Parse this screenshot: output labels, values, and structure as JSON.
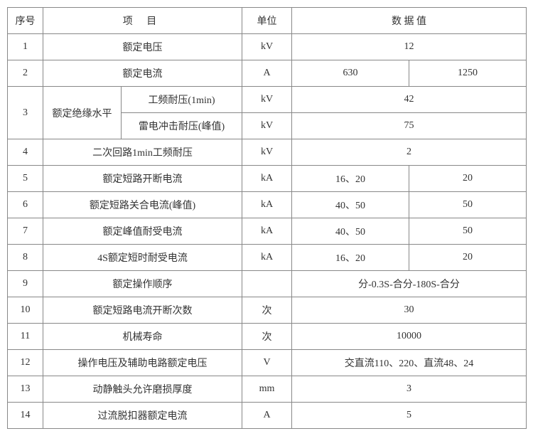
{
  "headers": {
    "seq": "序号",
    "item": "项   目",
    "unit": "单位",
    "value": "数 据 值"
  },
  "rows": {
    "r1": {
      "seq": "1",
      "item": "额定电压",
      "unit": "kV",
      "val": "12"
    },
    "r2": {
      "seq": "2",
      "item": "额定电流",
      "unit": "A",
      "val_a": "630",
      "val_b": "1250"
    },
    "r3": {
      "seq": "3",
      "item_group": "额定绝缘水平",
      "sub_a": "工频耐压(1min)",
      "unit_a": "kV",
      "val_a": "42",
      "sub_b": "雷电冲击耐压(峰值)",
      "unit_b": "kV",
      "val_b": "75"
    },
    "r4": {
      "seq": "4",
      "item": "二次回路1min工频耐压",
      "unit": "kV",
      "val": "2"
    },
    "r5": {
      "seq": "5",
      "item": "额定短路开断电流",
      "unit": "kA",
      "val_a": "16、20",
      "val_b": "20"
    },
    "r6": {
      "seq": "6",
      "item": "额定短路关合电流(峰值)",
      "unit": "kA",
      "val_a": "40、50",
      "val_b": "50"
    },
    "r7": {
      "seq": "7",
      "item": "额定峰值耐受电流",
      "unit": "kA",
      "val_a": "40、50",
      "val_b": "50"
    },
    "r8": {
      "seq": "8",
      "item": "4S额定短时耐受电流",
      "unit": "kA",
      "val_a": "16、20",
      "val_b": "20"
    },
    "r9": {
      "seq": "9",
      "item": "额定操作顺序",
      "unit": "",
      "val": "分-0.3S-合分-180S-合分"
    },
    "r10": {
      "seq": "10",
      "item": "额定短路电流开断次数",
      "unit": "次",
      "val": "30"
    },
    "r11": {
      "seq": "11",
      "item": "机械寿命",
      "unit": "次",
      "val": "10000"
    },
    "r12": {
      "seq": "12",
      "item": "操作电压及辅助电路额定电压",
      "unit": "V",
      "val": "交直流110、220、直流48、24"
    },
    "r13": {
      "seq": "13",
      "item": "动静触头允许磨损厚度",
      "unit": "mm",
      "val": "3"
    },
    "r14": {
      "seq": "14",
      "item": "过流脱扣器额定电流",
      "unit": "A",
      "val": "5"
    }
  },
  "style": {
    "border_color": "#888888",
    "text_color": "#333333",
    "background": "#ffffff",
    "font_family": "SimSun",
    "font_size_pt": 10.5
  }
}
